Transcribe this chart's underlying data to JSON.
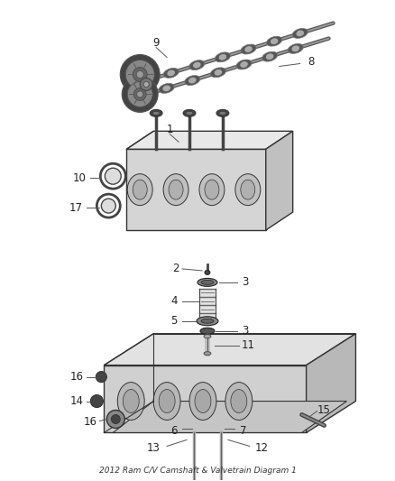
{
  "title": "2012 Ram C/V Camshaft & Valvetrain Diagram 1",
  "background_color": "#ffffff",
  "line_color": "#222222",
  "fig_width": 4.38,
  "fig_height": 5.33,
  "dpi": 100,
  "cam_color": "#555555",
  "block_face": "#e0e0e0",
  "block_edge": "#333333",
  "detail_face": "#c8c8c8",
  "dark_part": "#444444",
  "mid_part": "#888888",
  "light_part": "#bbbbbb"
}
